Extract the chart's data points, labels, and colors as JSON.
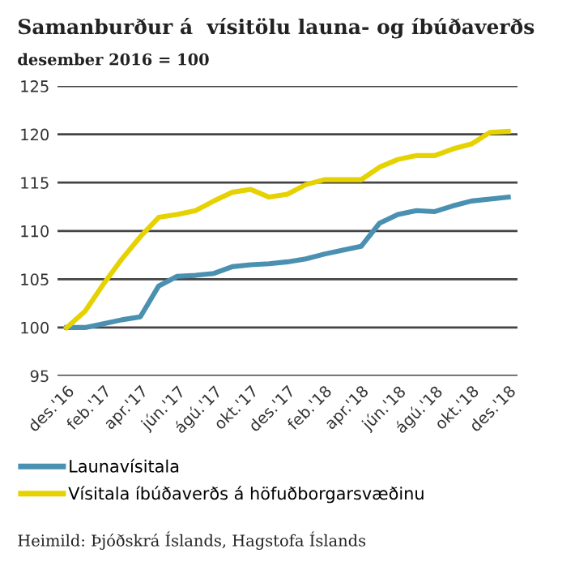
{
  "chart_data": {
    "type": "line",
    "title": "Samanburður á  vísitölu launa- og íbúðaverðs",
    "subtitle": "desember 2016 = 100",
    "categories": [
      "des.'16",
      null,
      "feb.'17",
      null,
      "apr.'17",
      null,
      "jún.'17",
      null,
      "ágú.'17",
      null,
      "okt.'17",
      null,
      "des.'17",
      null,
      "feb.'18",
      null,
      "apr.'18",
      null,
      "jún.'18",
      null,
      "ágú.'18",
      null,
      "okt.'18",
      null,
      "des.'18"
    ],
    "series": [
      {
        "name": "Launavísitala",
        "color": "#4a90b0",
        "values": [
          100,
          100.0,
          100.4,
          100.8,
          101.1,
          104.3,
          105.3,
          105.4,
          105.6,
          106.3,
          106.5,
          106.6,
          106.8,
          107.1,
          107.6,
          108.0,
          108.4,
          110.8,
          111.7,
          112.1,
          112.0,
          112.6,
          113.1,
          113.3,
          113.5
        ]
      },
      {
        "name": "Vísitala íbúðaverðs á höfuðborgarsvæðinu",
        "color": "#e6d200",
        "values": [
          100,
          101.7,
          104.5,
          107.1,
          109.4,
          111.4,
          111.7,
          112.1,
          113.1,
          114.0,
          114.3,
          113.5,
          113.8,
          114.8,
          115.3,
          115.3,
          115.3,
          116.6,
          117.4,
          117.8,
          117.8,
          118.5,
          119.0,
          120.2,
          120.3
        ]
      }
    ],
    "ylim": [
      95,
      125
    ],
    "yticks": [
      95,
      100,
      105,
      110,
      115,
      120,
      125
    ],
    "grid": "y",
    "legend": "bottom",
    "annotations": [
      "Heimild: Þjóðskrá Íslands, Hagstofa Íslands"
    ]
  }
}
